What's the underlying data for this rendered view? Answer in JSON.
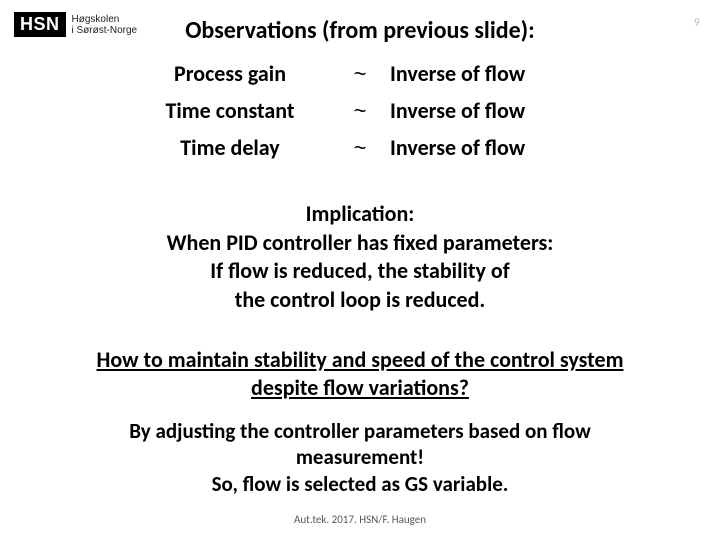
{
  "logo": {
    "wordmark": "HSN",
    "subtitle_line1": "Høgskolen",
    "subtitle_line2": "i Sørøst-Norge"
  },
  "page_number": "9",
  "title": "Observations (from previous slide):",
  "observations": {
    "rows": [
      {
        "label": "Process gain",
        "tilde": "~",
        "value": "Inverse of flow"
      },
      {
        "label": "Time constant",
        "tilde": "~",
        "value": "Inverse of flow"
      },
      {
        "label": "Time delay",
        "tilde": "~",
        "value": "Inverse of flow"
      }
    ],
    "label_fontsize": 22,
    "label_weight": 700,
    "label_color": "#000000"
  },
  "implication": {
    "line1": "Implication:",
    "line2": "When PID controller has fixed parameters:",
    "line3": "If flow is reduced, the stability of",
    "line4": "the control loop is reduced."
  },
  "question": {
    "line1": "How to maintain stability and speed of the control system",
    "line2": "despite flow variations?"
  },
  "answer": {
    "line1": "By adjusting the controller parameters based on flow",
    "line2": "measurement!",
    "line3": "So, flow is selected as GS variable."
  },
  "footer": "Aut.tek. 2017. HSN/F. Haugen",
  "colors": {
    "background": "#ffffff",
    "text": "#000000",
    "pagenum": "#bfbfbf",
    "footer": "#595959",
    "logo_bg": "#000000",
    "logo_fg": "#ffffff"
  }
}
